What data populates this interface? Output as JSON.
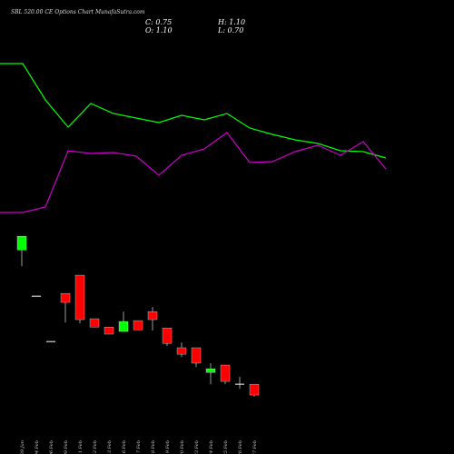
{
  "header": {
    "title": "SBL 520.00 CE Options Chart MunafaSutra.com",
    "close": "C: 0.75",
    "high": "H: 1.10",
    "open": "O: 1.10",
    "low": "L: 0.70"
  },
  "chart_data": [
    {
      "type": "line",
      "ylim": [
        0,
        100
      ],
      "series": [
        {
          "color": "#00ff00",
          "values": [
            72,
            72,
            56,
            44,
            54.4,
            50,
            48,
            46,
            49.2,
            47.2,
            50,
            43.6,
            40.8,
            38.4,
            36.8,
            33.6,
            33.2,
            30.4
          ]
        },
        {
          "color": "#cc00cc",
          "values": [
            6.4,
            6.4,
            8.8,
            33.6,
            32.4,
            32.8,
            31.2,
            22.8,
            31.6,
            34.4,
            41.6,
            28.4,
            28.8,
            33.2,
            36,
            31.6,
            37.6,
            25.6
          ]
        }
      ]
    },
    {
      "type": "candlestick",
      "ylim": [
        -1.16,
        13.54
      ],
      "up_color": "#00ff00",
      "down_color": "#ff0000",
      "categories": [
        "29 Jan",
        "04 Feb",
        "06 Feb",
        "09 Feb",
        "11 Feb",
        "12 Feb",
        "13 Feb",
        "16 Feb",
        "17 Feb",
        "18 Feb",
        "19 Feb",
        "20 Feb",
        "23 Feb",
        "24 Feb",
        "25 Feb",
        "26 Feb",
        "27 Feb"
      ],
      "open": [
        5.45,
        3.95,
        2.48,
        4.04,
        4.63,
        3.22,
        2.95,
        2.81,
        3.16,
        3.45,
        2.92,
        2.28,
        2.28,
        1.48,
        1.72,
        1.1,
        1.1
      ],
      "high": [
        5.89,
        3.95,
        2.48,
        4.04,
        4.63,
        3.22,
        2.95,
        3.45,
        3.16,
        3.6,
        2.92,
        2.45,
        2.28,
        1.78,
        1.72,
        1.34,
        1.1
      ],
      "low": [
        4.92,
        3.95,
        2.48,
        3.1,
        3.07,
        2.95,
        2.72,
        2.81,
        2.86,
        2.84,
        2.34,
        1.98,
        1.66,
        1.1,
        1.1,
        0.95,
        0.7
      ],
      "close": [
        5.89,
        3.95,
        2.48,
        3.75,
        3.19,
        2.95,
        2.72,
        3.13,
        2.86,
        3.19,
        2.42,
        2.07,
        1.78,
        1.6,
        1.19,
        1.1,
        0.75
      ]
    }
  ]
}
